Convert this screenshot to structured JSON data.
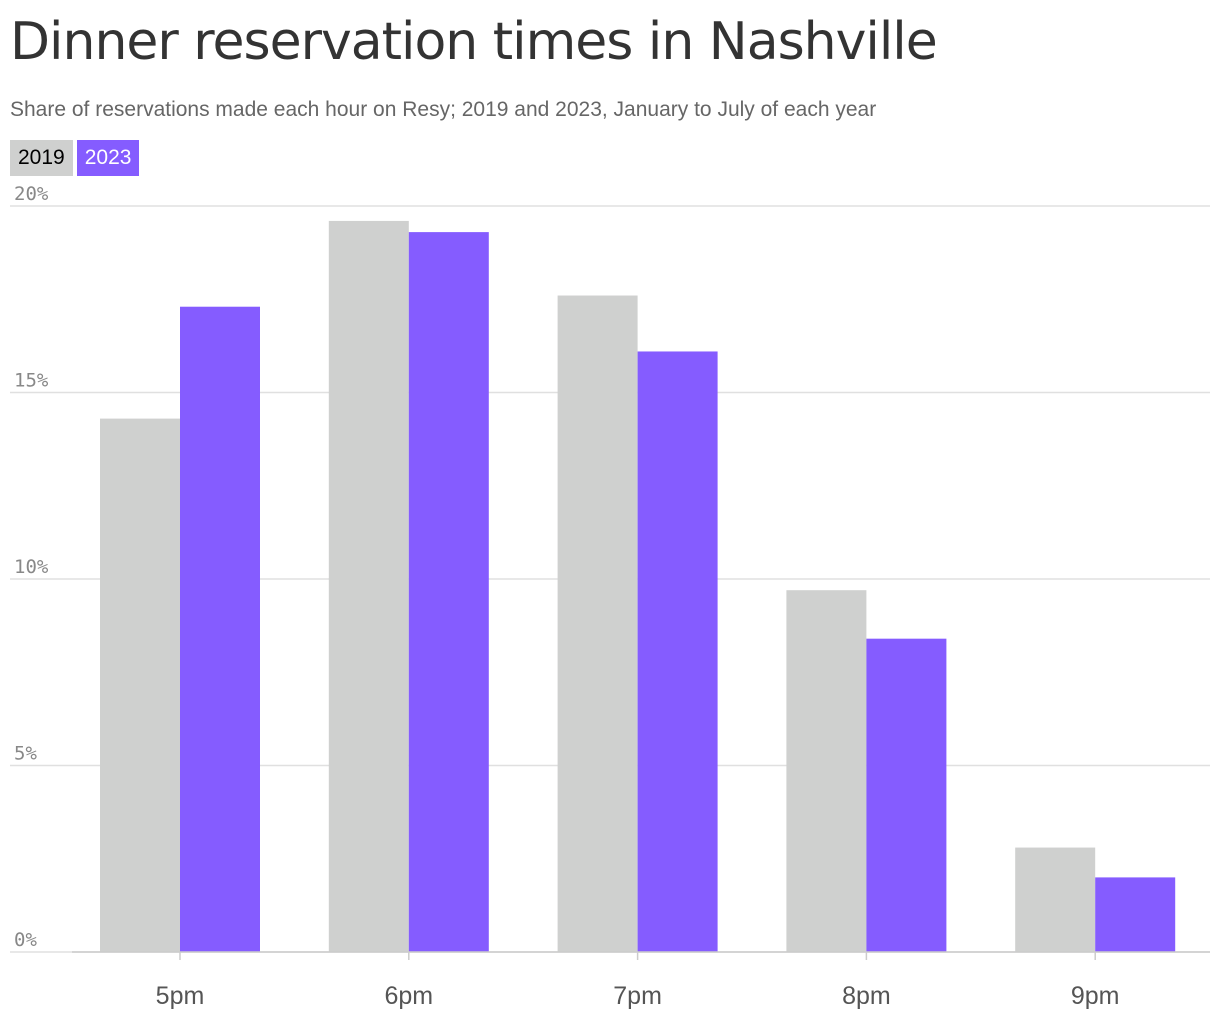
{
  "title": "Dinner reservation times in Nashville",
  "subtitle": "Share of reservations made each hour on Resy; 2019 and 2023, January to July of each year",
  "legend": [
    "2019",
    "2023"
  ],
  "colors": {
    "2019": "#cfd0cf",
    "2023": "#855cff",
    "grid": "#e0e0e0"
  },
  "chart_data": {
    "type": "bar",
    "categories": [
      "5pm",
      "6pm",
      "7pm",
      "8pm",
      "9pm"
    ],
    "series": [
      {
        "name": "2019",
        "values": [
          14.3,
          19.6,
          17.6,
          9.7,
          2.8
        ]
      },
      {
        "name": "2023",
        "values": [
          17.3,
          19.3,
          16.1,
          8.4,
          2.0
        ]
      }
    ],
    "yticks": [
      "0%",
      "5%",
      "10%",
      "15%",
      "20%"
    ],
    "ylim": [
      0,
      20
    ],
    "grid": true,
    "legend_position": "top-left"
  }
}
